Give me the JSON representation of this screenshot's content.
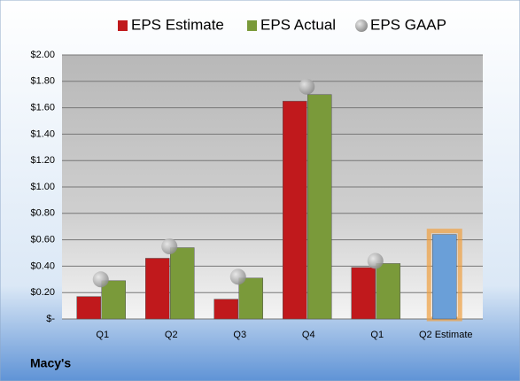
{
  "chart_data": {
    "type": "bar",
    "title": "Macy's",
    "categories": [
      "Q1",
      "Q2",
      "Q3",
      "Q4",
      "Q1",
      "Q2 Estimate"
    ],
    "series": [
      {
        "name": "EPS Estimate",
        "color": "#c0191c",
        "colors": [
          "#c0191c",
          "#c0191c",
          "#c0191c",
          "#c0191c",
          "#c0191c",
          "#6a9fd8"
        ],
        "values": [
          0.17,
          0.46,
          0.15,
          1.65,
          0.39,
          0.64
        ]
      },
      {
        "name": "EPS Actual",
        "color": "#7a9a3a",
        "values": [
          0.29,
          0.54,
          0.31,
          1.7,
          0.42,
          null
        ]
      },
      {
        "name": "EPS GAAP",
        "color": "#b0b0b0",
        "type": "scatter",
        "values": [
          0.3,
          0.55,
          0.32,
          1.76,
          0.44,
          null
        ]
      }
    ],
    "ylim": [
      0,
      2
    ],
    "yticks": [
      {
        "value": 0,
        "label": "$-"
      },
      {
        "value": 0.2,
        "label": "$0.20"
      },
      {
        "value": 0.4,
        "label": "$0.40"
      },
      {
        "value": 0.6,
        "label": "$0.60"
      },
      {
        "value": 0.8,
        "label": "$0.80"
      },
      {
        "value": 1.0,
        "label": "$1.00"
      },
      {
        "value": 1.2,
        "label": "$1.20"
      },
      {
        "value": 1.4,
        "label": "$1.40"
      },
      {
        "value": 1.6,
        "label": "$1.60"
      },
      {
        "value": 1.8,
        "label": "$1.80"
      },
      {
        "value": 2.0,
        "label": "$2.00"
      }
    ],
    "grid": true,
    "legend": "top"
  }
}
